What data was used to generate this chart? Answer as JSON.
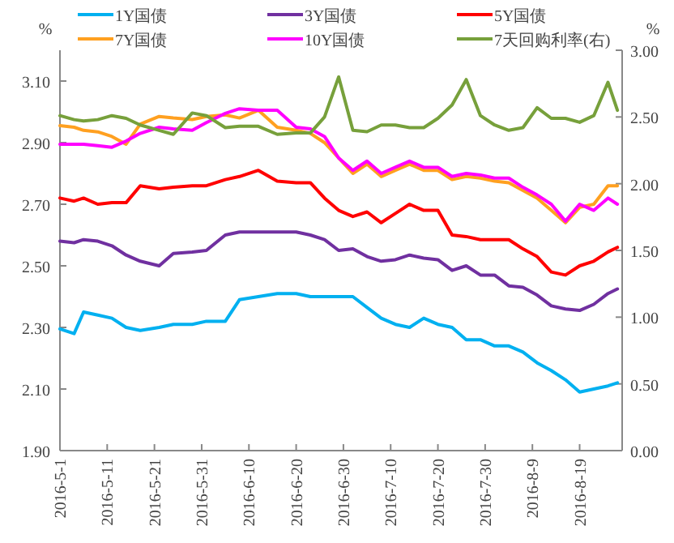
{
  "chart_data": {
    "type": "line",
    "ylabel": "%",
    "y2label": "%",
    "legend": "top",
    "grid": false,
    "marker": "none",
    "line_style": "solid",
    "x": [
      "2016-05-01",
      "2016-05-04",
      "2016-05-06",
      "2016-05-09",
      "2016-05-12",
      "2016-05-15",
      "2016-05-18",
      "2016-05-22",
      "2016-05-25",
      "2016-05-29",
      "2016-06-01",
      "2016-06-05",
      "2016-06-08",
      "2016-06-12",
      "2016-06-16",
      "2016-06-20",
      "2016-06-23",
      "2016-06-26",
      "2016-06-29",
      "2016-07-02",
      "2016-07-05",
      "2016-07-08",
      "2016-07-11",
      "2016-07-14",
      "2016-07-17",
      "2016-07-20",
      "2016-07-23",
      "2016-07-26",
      "2016-07-29",
      "2016-08-01",
      "2016-08-04",
      "2016-08-07",
      "2016-08-10",
      "2016-08-13",
      "2016-08-16",
      "2016-08-19",
      "2016-08-22",
      "2016-08-25",
      "2016-08-27"
    ],
    "xlim": [
      "2016-05-01",
      "2016-08-28"
    ],
    "xticks": [
      {
        "value": "2016-05-01",
        "label": "2016-5-1"
      },
      {
        "value": "2016-05-11",
        "label": "2016-5-11"
      },
      {
        "value": "2016-05-21",
        "label": "2016-5-21"
      },
      {
        "value": "2016-05-31",
        "label": "2016-5-31"
      },
      {
        "value": "2016-06-10",
        "label": "2016-6-10"
      },
      {
        "value": "2016-06-20",
        "label": "2016-6-20"
      },
      {
        "value": "2016-06-30",
        "label": "2016-6-30"
      },
      {
        "value": "2016-07-10",
        "label": "2016-7-10"
      },
      {
        "value": "2016-07-20",
        "label": "2016-7-20"
      },
      {
        "value": "2016-07-30",
        "label": "2016-7-30"
      },
      {
        "value": "2016-08-09",
        "label": "2016-8-9"
      },
      {
        "value": "2016-08-19",
        "label": "2016-8-19"
      }
    ],
    "ylim": [
      1.9,
      3.2
    ],
    "yticks": [
      {
        "value": 1.9,
        "label": "1.90"
      },
      {
        "value": 2.1,
        "label": "2.10"
      },
      {
        "value": 2.3,
        "label": "2.30"
      },
      {
        "value": 2.5,
        "label": "2.50"
      },
      {
        "value": 2.7,
        "label": "2.70"
      },
      {
        "value": 2.9,
        "label": "2.90"
      },
      {
        "value": 3.1,
        "label": "3.10"
      }
    ],
    "y2lim": [
      0,
      3
    ],
    "y2ticks": [
      {
        "value": 0,
        "label": "0.00"
      },
      {
        "value": 0.5,
        "label": "0.50"
      },
      {
        "value": 1,
        "label": "1.00"
      },
      {
        "value": 1.5,
        "label": "1.50"
      },
      {
        "value": 2,
        "label": "2.00"
      },
      {
        "value": 2.5,
        "label": "2.50"
      },
      {
        "value": 3,
        "label": "3.00"
      }
    ],
    "series": [
      {
        "name": "1Y国债",
        "color": "#00b0f0",
        "values": [
          2.295,
          2.28,
          2.35,
          2.34,
          2.33,
          2.3,
          2.29,
          2.3,
          2.31,
          2.31,
          2.32,
          2.32,
          2.39,
          2.4,
          2.41,
          2.41,
          2.4,
          2.4,
          2.4,
          2.4,
          2.365,
          2.33,
          2.31,
          2.3,
          2.33,
          2.31,
          2.3,
          2.26,
          2.26,
          2.24,
          2.24,
          2.22,
          2.185,
          2.16,
          2.13,
          2.09,
          2.1,
          2.11,
          2.12
        ]
      },
      {
        "name": "3Y国债",
        "color": "#7030a0",
        "values": [
          2.58,
          2.575,
          2.585,
          2.58,
          2.565,
          2.535,
          2.515,
          2.5,
          2.54,
          2.545,
          2.55,
          2.6,
          2.61,
          2.61,
          2.61,
          2.61,
          2.6,
          2.585,
          2.55,
          2.555,
          2.53,
          2.515,
          2.52,
          2.535,
          2.525,
          2.52,
          2.485,
          2.5,
          2.47,
          2.47,
          2.435,
          2.43,
          2.405,
          2.37,
          2.36,
          2.355,
          2.375,
          2.41,
          2.425
        ]
      },
      {
        "name": "5Y国债",
        "color": "#ff0000",
        "values": [
          2.72,
          2.71,
          2.72,
          2.7,
          2.705,
          2.705,
          2.76,
          2.75,
          2.755,
          2.76,
          2.76,
          2.78,
          2.79,
          2.81,
          2.775,
          2.77,
          2.77,
          2.72,
          2.68,
          2.66,
          2.675,
          2.64,
          2.67,
          2.7,
          2.68,
          2.68,
          2.6,
          2.595,
          2.585,
          2.585,
          2.585,
          2.555,
          2.53,
          2.48,
          2.47,
          2.5,
          2.515,
          2.545,
          2.56
        ]
      },
      {
        "name": "7Y国债",
        "color": "#ffa020",
        "values": [
          2.955,
          2.95,
          2.94,
          2.935,
          2.92,
          2.895,
          2.96,
          2.985,
          2.98,
          2.975,
          2.985,
          2.99,
          2.98,
          3.005,
          2.95,
          2.94,
          2.93,
          2.9,
          2.85,
          2.8,
          2.83,
          2.79,
          2.81,
          2.83,
          2.81,
          2.81,
          2.78,
          2.79,
          2.785,
          2.775,
          2.77,
          2.745,
          2.72,
          2.68,
          2.64,
          2.69,
          2.7,
          2.76,
          2.76
        ]
      },
      {
        "name": "10Y国债",
        "color": "#ff00ff",
        "values": [
          2.895,
          2.895,
          2.895,
          2.89,
          2.885,
          2.905,
          2.93,
          2.95,
          2.945,
          2.94,
          2.965,
          2.995,
          3.01,
          3.005,
          3.005,
          2.95,
          2.945,
          2.92,
          2.85,
          2.81,
          2.84,
          2.8,
          2.82,
          2.84,
          2.82,
          2.82,
          2.79,
          2.8,
          2.795,
          2.785,
          2.785,
          2.755,
          2.73,
          2.7,
          2.645,
          2.7,
          2.68,
          2.72,
          2.7
        ]
      },
      {
        "name": "7天回购利率(右)",
        "color": "#77a03b",
        "axis": "y2",
        "values": [
          2.51,
          2.48,
          2.47,
          2.48,
          2.51,
          2.49,
          2.44,
          2.4,
          2.37,
          2.53,
          2.51,
          2.42,
          2.43,
          2.43,
          2.37,
          2.38,
          2.38,
          2.5,
          2.8,
          2.4,
          2.39,
          2.44,
          2.44,
          2.42,
          2.42,
          2.49,
          2.59,
          2.78,
          2.51,
          2.44,
          2.4,
          2.42,
          2.57,
          2.49,
          2.49,
          2.46,
          2.51,
          2.76,
          2.55
        ]
      }
    ]
  }
}
